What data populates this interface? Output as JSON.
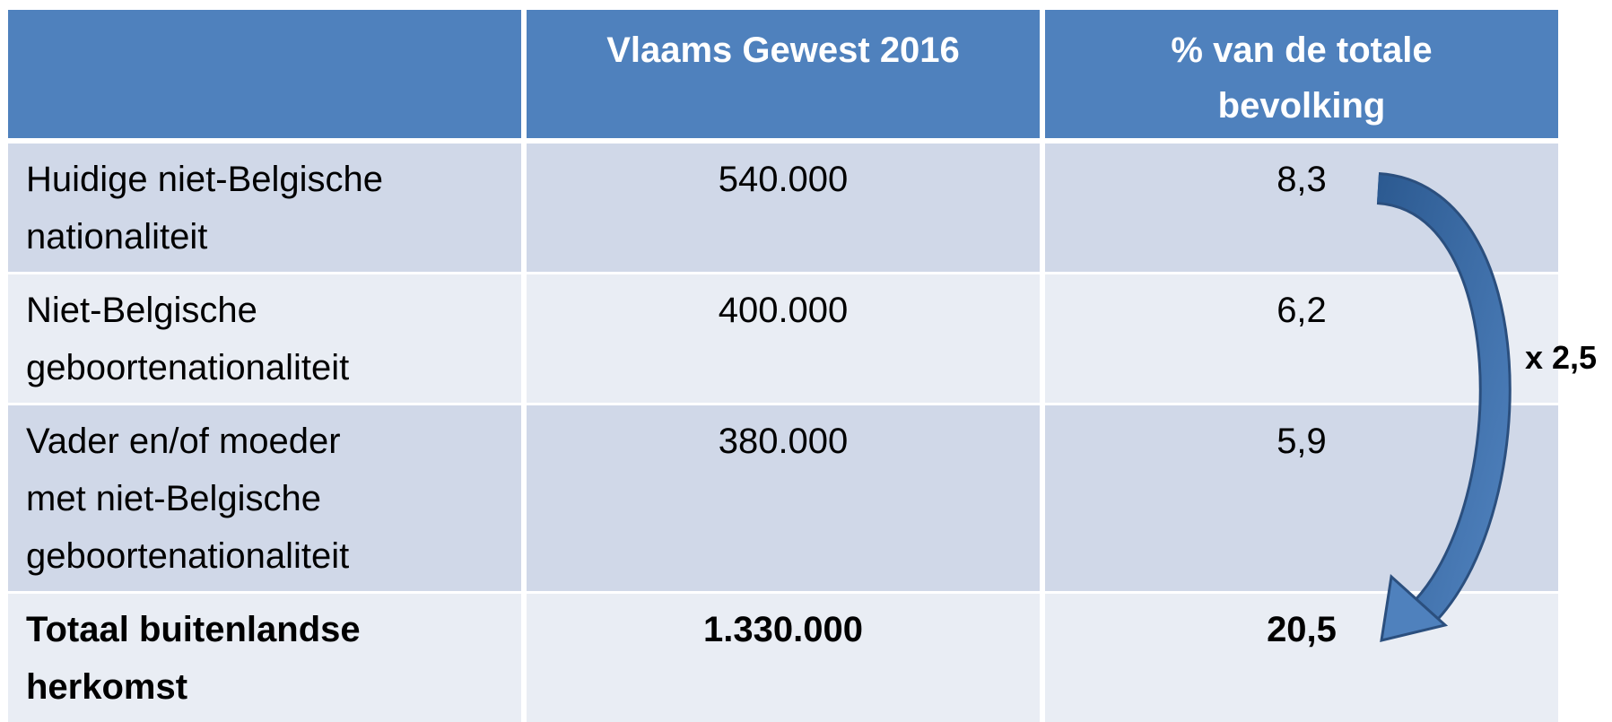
{
  "table": {
    "header": [
      "Vlaams Gewest 2016",
      [
        "% van de totale",
        "bevolking"
      ]
    ],
    "rows": [
      {
        "label": [
          "Huidige niet-Belgische",
          "nationaliteit"
        ],
        "count": "540.000",
        "percent": "8,3"
      },
      {
        "label": [
          "Niet-Belgische",
          "geboortenationaliteit"
        ],
        "count": "400.000",
        "percent": "6,2"
      },
      {
        "label": [
          "Vader en/of moeder",
          "met niet-Belgische",
          "geboortenationaliteit"
        ],
        "count": "380.000",
        "percent": "5,9"
      },
      {
        "label": [
          "Totaal buitenlandse",
          "herkomst"
        ],
        "count": "1.330.000",
        "percent": "20,5",
        "bold": true
      }
    ]
  },
  "annotation": "x 2,5"
}
